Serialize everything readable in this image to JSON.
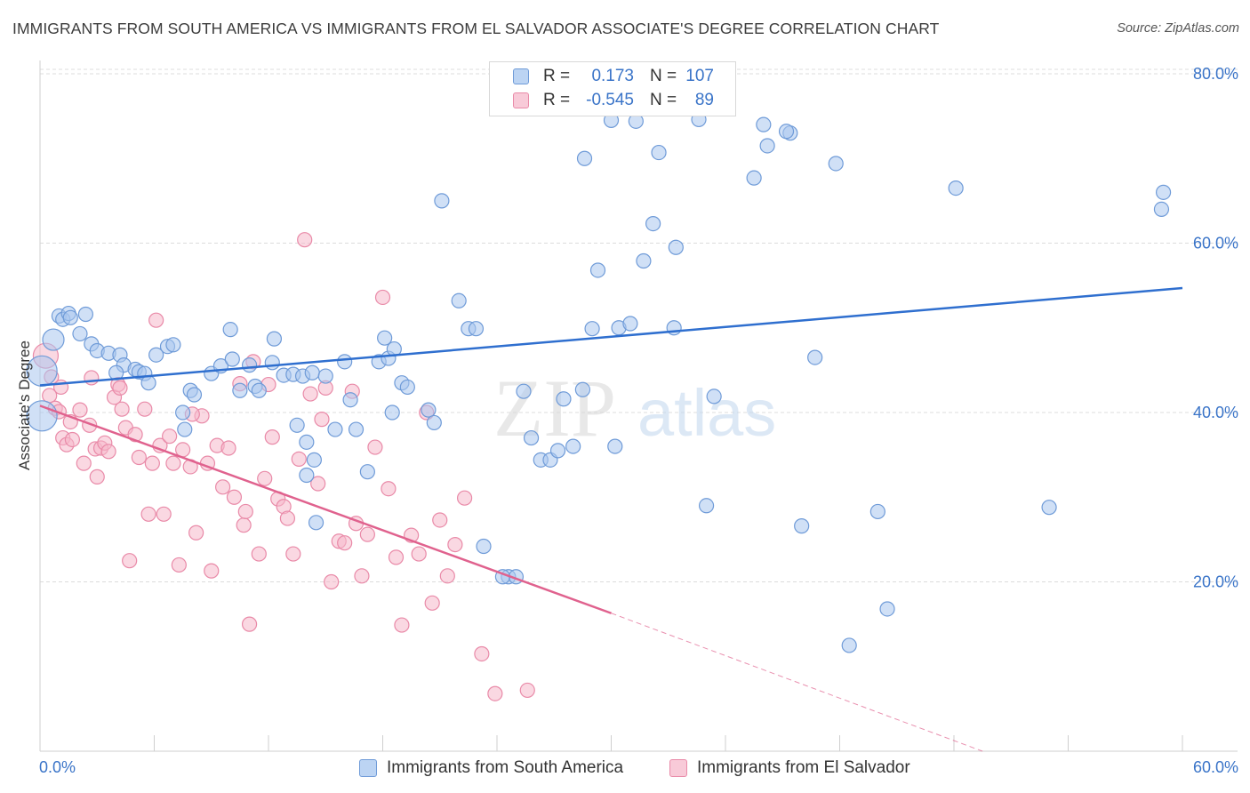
{
  "title": "IMMIGRANTS FROM SOUTH AMERICA VS IMMIGRANTS FROM EL SALVADOR ASSOCIATE'S DEGREE CORRELATION CHART",
  "source": "Source: ZipAtlas.com",
  "watermark": "ZIPatlas",
  "legend": {
    "rows": [
      {
        "r_label": "R =",
        "r_value": "0.173",
        "n_label": "N =",
        "n_value": "107"
      },
      {
        "r_label": "R =",
        "r_value": "-0.545",
        "n_label": "N =",
        "n_value": "89"
      }
    ]
  },
  "bottom_legend": {
    "south_america": "Immigrants from South America",
    "el_salvador": "Immigrants from El Salvador"
  },
  "colors": {
    "blue_fill": "#a9c7ee",
    "blue_stroke": "#6f9bd8",
    "blue_line": "#2f6fcf",
    "pink_fill": "#f5b8cb",
    "pink_stroke": "#e98aa8",
    "pink_line": "#e0628e",
    "axis_text": "#3a74c8",
    "grid": "#dcdcdc"
  },
  "chart_data": {
    "type": "scatter",
    "title": "IMMIGRANTS FROM SOUTH AMERICA VS IMMIGRANTS FROM EL SALVADOR ASSOCIATE'S DEGREE CORRELATION CHART",
    "xlabel": "",
    "ylabel": "Associate's Degree",
    "xlim": [
      0,
      60
    ],
    "ylim": [
      0,
      80
    ],
    "x_tick_labels": [
      "0.0%",
      "60.0%"
    ],
    "y_ticks": [
      20,
      40,
      60,
      80
    ],
    "y_tick_labels": [
      "20.0%",
      "40.0%",
      "60.0%",
      "80.0%"
    ],
    "grid": true,
    "legend_placement": "top-center",
    "series": [
      {
        "name": "Immigrants from South America",
        "r": 0.173,
        "n": 107,
        "trend": {
          "x": [
            0,
            60
          ],
          "y": [
            43.2,
            54.7
          ]
        },
        "points": [
          [
            0.1,
            44.9
          ],
          [
            0.1,
            39.6
          ],
          [
            0.7,
            48.6
          ],
          [
            1.0,
            51.4
          ],
          [
            1.2,
            51.0
          ],
          [
            1.5,
            51.7
          ],
          [
            1.6,
            51.2
          ],
          [
            2.1,
            49.3
          ],
          [
            2.4,
            51.6
          ],
          [
            2.7,
            48.1
          ],
          [
            3.0,
            47.3
          ],
          [
            3.6,
            47.0
          ],
          [
            4.2,
            46.8
          ],
          [
            4.4,
            45.6
          ],
          [
            4.0,
            44.7
          ],
          [
            5.0,
            45.1
          ],
          [
            5.2,
            44.8
          ],
          [
            5.5,
            44.6
          ],
          [
            5.7,
            43.5
          ],
          [
            6.7,
            47.8
          ],
          [
            7.0,
            48.0
          ],
          [
            6.1,
            46.8
          ],
          [
            7.9,
            42.6
          ],
          [
            8.1,
            42.1
          ],
          [
            7.6,
            38.0
          ],
          [
            7.5,
            40.0
          ],
          [
            9.0,
            44.6
          ],
          [
            9.5,
            45.5
          ],
          [
            10.0,
            49.8
          ],
          [
            10.1,
            46.3
          ],
          [
            10.5,
            42.6
          ],
          [
            11.0,
            45.6
          ],
          [
            11.3,
            43.1
          ],
          [
            11.5,
            42.6
          ],
          [
            12.2,
            45.9
          ],
          [
            12.3,
            48.7
          ],
          [
            12.8,
            44.4
          ],
          [
            13.3,
            44.5
          ],
          [
            13.8,
            44.3
          ],
          [
            14.3,
            44.7
          ],
          [
            13.5,
            38.5
          ],
          [
            14.0,
            36.5
          ],
          [
            14.4,
            34.4
          ],
          [
            14.0,
            32.6
          ],
          [
            14.5,
            27.0
          ],
          [
            15.0,
            44.3
          ],
          [
            15.5,
            38.0
          ],
          [
            16.0,
            46.0
          ],
          [
            16.3,
            41.5
          ],
          [
            16.6,
            38.0
          ],
          [
            17.2,
            33.0
          ],
          [
            17.8,
            46.0
          ],
          [
            18.1,
            48.8
          ],
          [
            18.3,
            46.4
          ],
          [
            18.5,
            40.0
          ],
          [
            18.6,
            47.5
          ],
          [
            19.0,
            43.5
          ],
          [
            19.3,
            43.0
          ],
          [
            20.4,
            40.3
          ],
          [
            20.7,
            38.8
          ],
          [
            21.1,
            65.0
          ],
          [
            22.0,
            53.2
          ],
          [
            22.5,
            49.9
          ],
          [
            22.9,
            49.9
          ],
          [
            23.3,
            24.2
          ],
          [
            24.6,
            20.6
          ],
          [
            25.0,
            20.6
          ],
          [
            25.4,
            42.5
          ],
          [
            25.8,
            37.0
          ],
          [
            26.3,
            34.4
          ],
          [
            26.8,
            34.4
          ],
          [
            27.2,
            35.5
          ],
          [
            27.5,
            41.6
          ],
          [
            28.0,
            36.0
          ],
          [
            28.5,
            42.7
          ],
          [
            28.6,
            70.0
          ],
          [
            29.0,
            49.9
          ],
          [
            29.3,
            56.8
          ],
          [
            30.0,
            74.5
          ],
          [
            30.2,
            36.0
          ],
          [
            30.4,
            50.0
          ],
          [
            31.0,
            50.5
          ],
          [
            31.3,
            74.4
          ],
          [
            31.7,
            57.9
          ],
          [
            32.2,
            62.3
          ],
          [
            32.5,
            70.7
          ],
          [
            33.3,
            50.0
          ],
          [
            33.4,
            59.5
          ],
          [
            34.6,
            74.6
          ],
          [
            35.0,
            29.0
          ],
          [
            37.5,
            67.7
          ],
          [
            38.0,
            74.0
          ],
          [
            38.2,
            71.5
          ],
          [
            39.4,
            73.0
          ],
          [
            40.0,
            26.6
          ],
          [
            40.7,
            46.5
          ],
          [
            41.8,
            69.4
          ],
          [
            42.5,
            12.5
          ],
          [
            44.0,
            28.3
          ],
          [
            44.5,
            16.8
          ],
          [
            48.1,
            66.5
          ],
          [
            53.0,
            28.8
          ],
          [
            59.0,
            66.0
          ],
          [
            58.9,
            64.0
          ],
          [
            39.2,
            73.2
          ],
          [
            35.4,
            41.9
          ],
          [
            24.3,
            20.6
          ]
        ]
      },
      {
        "name": "Immigrants from El Salvador",
        "r": -0.545,
        "n": 89,
        "trend": {
          "x": [
            0,
            30
          ],
          "y": [
            40.8,
            16.3
          ]
        },
        "trend_dashed": {
          "x": [
            30,
            49.5
          ],
          "y": [
            16.3,
            0.0
          ]
        },
        "points": [
          [
            0.3,
            46.7
          ],
          [
            0.5,
            42.0
          ],
          [
            0.8,
            40.5
          ],
          [
            1.0,
            40.1
          ],
          [
            1.1,
            43.0
          ],
          [
            1.2,
            37.0
          ],
          [
            1.4,
            36.2
          ],
          [
            1.6,
            38.9
          ],
          [
            1.7,
            36.8
          ],
          [
            2.1,
            40.3
          ],
          [
            2.3,
            34.0
          ],
          [
            2.6,
            38.5
          ],
          [
            2.9,
            35.7
          ],
          [
            3.0,
            32.4
          ],
          [
            3.2,
            35.8
          ],
          [
            3.4,
            36.4
          ],
          [
            3.6,
            35.4
          ],
          [
            3.9,
            41.8
          ],
          [
            4.1,
            43.3
          ],
          [
            4.3,
            40.4
          ],
          [
            4.5,
            38.2
          ],
          [
            4.7,
            22.5
          ],
          [
            5.0,
            37.4
          ],
          [
            5.2,
            34.7
          ],
          [
            5.5,
            40.4
          ],
          [
            5.7,
            28.0
          ],
          [
            5.9,
            34.0
          ],
          [
            6.1,
            50.9
          ],
          [
            6.3,
            36.1
          ],
          [
            6.5,
            28.0
          ],
          [
            6.8,
            37.2
          ],
          [
            7.0,
            34.0
          ],
          [
            7.3,
            22.0
          ],
          [
            7.5,
            35.6
          ],
          [
            7.9,
            33.6
          ],
          [
            8.2,
            25.8
          ],
          [
            8.5,
            39.6
          ],
          [
            8.8,
            34.0
          ],
          [
            9.0,
            21.3
          ],
          [
            9.3,
            36.1
          ],
          [
            9.6,
            31.2
          ],
          [
            9.9,
            35.8
          ],
          [
            10.2,
            30.0
          ],
          [
            10.5,
            43.4
          ],
          [
            10.7,
            26.7
          ],
          [
            11.0,
            15.0
          ],
          [
            11.2,
            46.0
          ],
          [
            11.5,
            23.3
          ],
          [
            11.8,
            32.2
          ],
          [
            12.0,
            43.3
          ],
          [
            12.2,
            37.1
          ],
          [
            12.5,
            29.8
          ],
          [
            12.8,
            28.9
          ],
          [
            13.0,
            27.5
          ],
          [
            13.3,
            23.3
          ],
          [
            13.6,
            34.5
          ],
          [
            13.9,
            60.4
          ],
          [
            14.2,
            42.2
          ],
          [
            14.6,
            31.6
          ],
          [
            14.8,
            39.2
          ],
          [
            15.0,
            42.9
          ],
          [
            15.3,
            20.0
          ],
          [
            15.7,
            24.8
          ],
          [
            16.0,
            24.6
          ],
          [
            16.4,
            42.5
          ],
          [
            16.6,
            26.9
          ],
          [
            16.9,
            20.7
          ],
          [
            17.2,
            25.6
          ],
          [
            17.6,
            35.9
          ],
          [
            18.0,
            53.6
          ],
          [
            18.3,
            31.0
          ],
          [
            18.7,
            22.9
          ],
          [
            19.0,
            14.9
          ],
          [
            19.5,
            25.5
          ],
          [
            19.9,
            23.3
          ],
          [
            20.3,
            40.0
          ],
          [
            20.6,
            17.5
          ],
          [
            21.0,
            27.3
          ],
          [
            21.4,
            20.7
          ],
          [
            21.8,
            24.4
          ],
          [
            22.3,
            29.9
          ],
          [
            23.2,
            11.5
          ],
          [
            23.9,
            6.8
          ],
          [
            25.6,
            7.2
          ],
          [
            0.6,
            44.2
          ],
          [
            2.7,
            44.1
          ],
          [
            4.2,
            42.9
          ],
          [
            10.8,
            28.3
          ],
          [
            8.0,
            39.8
          ]
        ]
      }
    ]
  }
}
